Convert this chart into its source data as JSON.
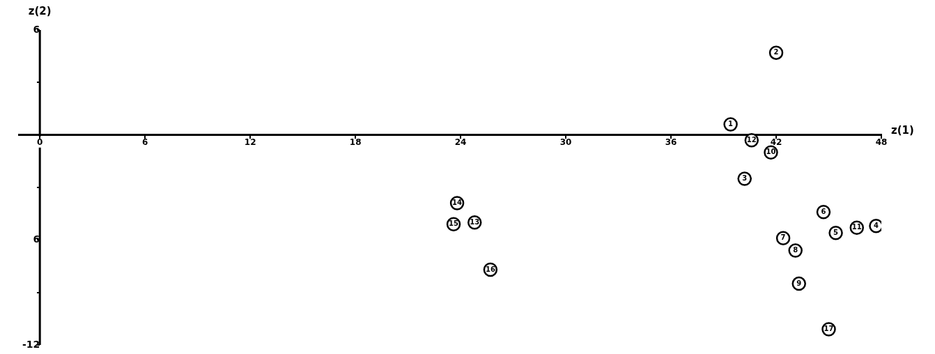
{
  "chart_data": {
    "type": "scatter",
    "xlabel": "z(1)",
    "ylabel": "z(2)",
    "x": [
      39.4,
      42.0,
      40.2,
      47.7,
      45.4,
      44.7,
      42.4,
      43.1,
      43.3,
      41.7,
      46.6,
      40.6,
      24.8,
      23.8,
      23.6,
      25.7,
      45.0
    ],
    "series": [
      {
        "color": "#000000",
        "values": [
          0.6,
          4.7,
          -2.5,
          -5.2,
          -5.6,
          -4.4,
          -5.9,
          -6.6,
          -8.5,
          -1.0,
          -5.3,
          -0.3,
          -5.0,
          -3.9,
          -5.1,
          -7.7,
          -11.1
        ]
      }
    ],
    "xlim": [
      -1.2,
      48
    ],
    "ylim": [
      -12,
      6
    ],
    "xticks": [
      0,
      6,
      12,
      18,
      24,
      30,
      {
        "value": 36,
        "label": "36"
      },
      42,
      48
    ],
    "yticks": [
      {
        "value": 6,
        "label": "6"
      },
      {
        "value": 3,
        "label": null
      },
      {
        "value": -3,
        "label": null
      },
      {
        "value": -6,
        "label": "6"
      },
      {
        "value": -9,
        "label": null
      },
      {
        "value": -12,
        "label": "-12"
      }
    ],
    "marker": "circle",
    "grid": false,
    "legend": false,
    "annotations": [
      {
        "text": "1",
        "x": 39.4,
        "y": 0.6
      },
      {
        "text": "2",
        "x": 42.0,
        "y": 4.7
      },
      {
        "text": "3",
        "x": 40.2,
        "y": -2.5
      },
      {
        "text": "4",
        "x": 47.7,
        "y": -5.2
      },
      {
        "text": "5",
        "x": 45.4,
        "y": -5.6
      },
      {
        "text": "6",
        "x": 44.7,
        "y": -4.4
      },
      {
        "text": "7",
        "x": 42.4,
        "y": -5.9
      },
      {
        "text": "8",
        "x": 43.1,
        "y": -6.6
      },
      {
        "text": "9",
        "x": 43.3,
        "y": -8.5
      },
      {
        "text": "10",
        "x": 41.7,
        "y": -1.0
      },
      {
        "text": "11",
        "x": 46.6,
        "y": -5.3
      },
      {
        "text": "12",
        "x": 40.6,
        "y": -0.3
      },
      {
        "text": "13",
        "x": 24.8,
        "y": -5.0
      },
      {
        "text": "14",
        "x": 23.8,
        "y": -3.9
      },
      {
        "text": "15",
        "x": 23.6,
        "y": -5.1
      },
      {
        "text": "16",
        "x": 25.7,
        "y": -7.7
      },
      {
        "text": "17",
        "x": 45.0,
        "y": -11.1
      }
    ]
  }
}
